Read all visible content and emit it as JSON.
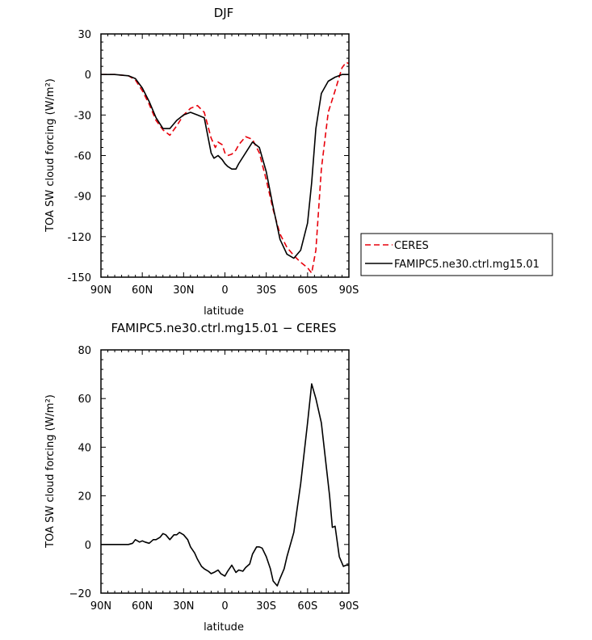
{
  "chart_data": [
    {
      "type": "line",
      "title": "DJF",
      "xlabel": "latitude",
      "ylabel": "TOA SW cloud forcing (W/m²)",
      "xlim": [
        90,
        -90
      ],
      "ylim": [
        -150,
        30
      ],
      "xticks": [
        90,
        60,
        30,
        0,
        -30,
        -60,
        -90
      ],
      "xtick_labels": [
        "90N",
        "60N",
        "30N",
        "0",
        "30S",
        "60S",
        "90S"
      ],
      "yticks": [
        30,
        0,
        -30,
        -60,
        -90,
        -120,
        -150
      ],
      "ytick_labels": [
        "30",
        "0",
        "-30",
        "-60",
        "-90",
        "-120",
        "-150"
      ],
      "legend_position": "right",
      "series": [
        {
          "name": "CERES",
          "color": "#e8000b",
          "dash": "dashed",
          "x": [
            90,
            80,
            70,
            65,
            60,
            55,
            50,
            45,
            40,
            35,
            30,
            25,
            20,
            15,
            10,
            7,
            5,
            2,
            0,
            -2,
            -5,
            -8,
            -10,
            -15,
            -20,
            -25,
            -30,
            -35,
            -40,
            -45,
            -50,
            -55,
            -60,
            -63,
            -66,
            -70,
            -75,
            -80,
            -85,
            -88,
            -90
          ],
          "y": [
            0,
            0,
            -1,
            -4,
            -12,
            -22,
            -34,
            -41,
            -45,
            -38,
            -30,
            -25,
            -23,
            -28,
            -47,
            -54,
            -50,
            -52,
            -58,
            -60,
            -59,
            -56,
            -52,
            -46,
            -48,
            -58,
            -78,
            -100,
            -118,
            -128,
            -134,
            -139,
            -143,
            -147,
            -130,
            -70,
            -28,
            -12,
            5,
            9,
            8
          ]
        },
        {
          "name": "FAMIPC5.ne30.ctrl.mg15.01",
          "color": "#000000",
          "dash": "solid",
          "x": [
            90,
            80,
            70,
            65,
            60,
            55,
            50,
            45,
            40,
            35,
            30,
            25,
            20,
            15,
            10,
            8,
            5,
            2,
            0,
            -2,
            -5,
            -8,
            -10,
            -15,
            -20,
            -25,
            -30,
            -35,
            -40,
            -45,
            -50,
            -55,
            -60,
            -63,
            -66,
            -70,
            -75,
            -80,
            -85,
            -90
          ],
          "y": [
            0,
            0,
            -1,
            -3,
            -10,
            -20,
            -32,
            -40,
            -40,
            -34,
            -30,
            -28,
            -30,
            -32,
            -58,
            -62,
            -60,
            -63,
            -66,
            -68,
            -70,
            -70,
            -66,
            -58,
            -50,
            -54,
            -72,
            -98,
            -122,
            -133,
            -136,
            -130,
            -110,
            -80,
            -40,
            -14,
            -5,
            -2,
            0,
            0
          ]
        }
      ]
    },
    {
      "type": "line",
      "title": "FAMIPC5.ne30.ctrl.mg15.01 − CERES",
      "xlabel": "latitude",
      "ylabel": "TOA SW cloud forcing (W/m²)",
      "xlim": [
        90,
        -90
      ],
      "ylim": [
        -20,
        80
      ],
      "xticks": [
        90,
        60,
        30,
        0,
        -30,
        -60,
        -90
      ],
      "xtick_labels": [
        "90N",
        "60N",
        "30N",
        "0",
        "30S",
        "60S",
        "90S"
      ],
      "yticks": [
        80,
        60,
        40,
        20,
        0,
        -20
      ],
      "ytick_labels": [
        "80",
        "60",
        "40",
        "20",
        "0",
        "−20"
      ],
      "series": [
        {
          "color": "#000000",
          "dash": "solid",
          "x": [
            90,
            75,
            70,
            67,
            65,
            62,
            60,
            58,
            55,
            52,
            50,
            47,
            45,
            43,
            40,
            37,
            35,
            33,
            30,
            27,
            25,
            22,
            20,
            17,
            15,
            12,
            10,
            8,
            5,
            3,
            0,
            -2,
            -5,
            -8,
            -10,
            -13,
            -15,
            -18,
            -20,
            -23,
            -25,
            -27,
            -30,
            -33,
            -35,
            -38,
            -40,
            -43,
            -45,
            -50,
            -55,
            -60,
            -63,
            -66,
            -70,
            -73,
            -76,
            -78,
            -80,
            -83,
            -86,
            -88,
            -90
          ],
          "y": [
            0,
            0,
            0,
            0.5,
            2,
            1,
            1.5,
            1,
            0.5,
            2,
            2,
            3,
            4.5,
            4,
            2,
            4,
            4,
            5,
            4,
            2,
            -1,
            -3.5,
            -6,
            -9,
            -10,
            -11,
            -12,
            -11.5,
            -10.5,
            -12,
            -13,
            -11,
            -8.5,
            -11.5,
            -10.5,
            -11,
            -9.5,
            -8,
            -4,
            -1,
            -1,
            -1.5,
            -5,
            -10,
            -15,
            -17,
            -14,
            -10,
            -5,
            5,
            25,
            50,
            66,
            60,
            50,
            35,
            20,
            7,
            7.5,
            -5,
            -9,
            -8.5,
            -8.5
          ]
        }
      ]
    }
  ]
}
